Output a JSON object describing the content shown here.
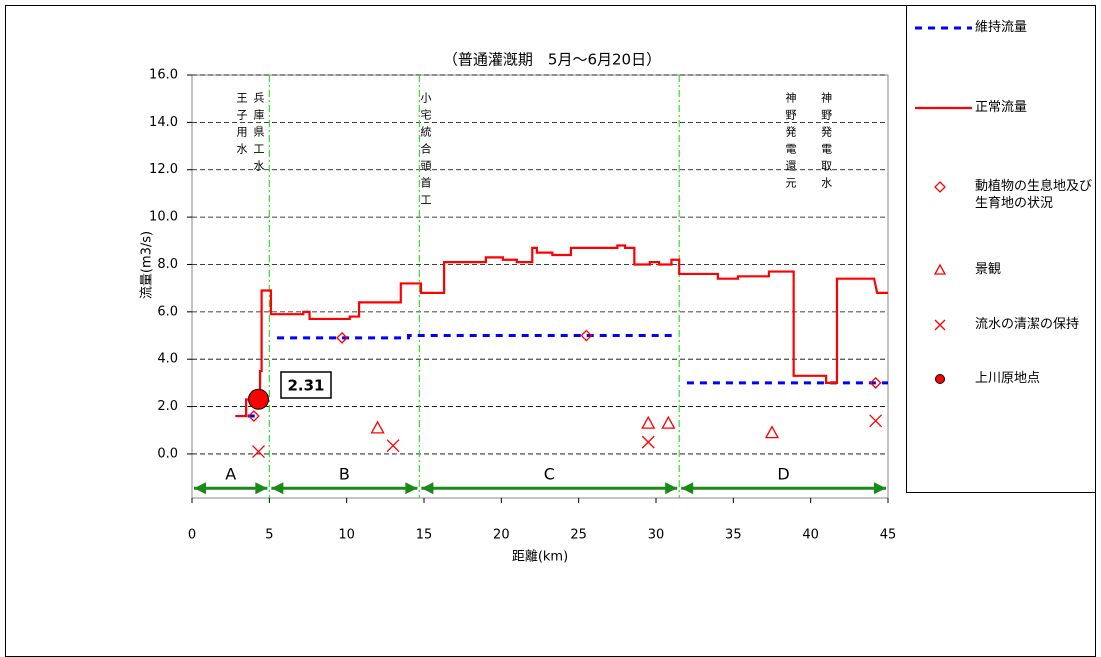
{
  "chart_data": {
    "type": "line",
    "title": "（普通灌漑期　5月～6月20日）",
    "xlabel": "距離(km)",
    "ylabel": "流量(m3/s)",
    "xlim": [
      0,
      45
    ],
    "ylim": [
      -1.86,
      16
    ],
    "xticks": [
      0,
      5,
      10,
      15,
      20,
      25,
      30,
      35,
      40,
      45
    ],
    "yticks": [
      {
        "value": 0,
        "label": "0.0"
      },
      {
        "value": 2,
        "label": "2.0"
      },
      {
        "value": 4,
        "label": "4.0"
      },
      {
        "value": 6,
        "label": "6.0"
      },
      {
        "value": 8,
        "label": "8.0"
      },
      {
        "value": 10,
        "label": "10.0"
      },
      {
        "value": 12,
        "label": "12.0"
      },
      {
        "value": 14,
        "label": "14.0"
      },
      {
        "value": 16,
        "label": "16.0"
      }
    ],
    "grid": true,
    "series": [
      {
        "name": "維持流量",
        "color": "#0000ff",
        "marker": "dash",
        "x": [
          3.6,
          4.4,
          null,
          5.5,
          14.0,
          14.0,
          31.4,
          null,
          32.0,
          45
        ],
        "values": [
          1.6,
          1.6,
          null,
          4.9,
          4.9,
          5.0,
          5.0,
          null,
          3.0,
          3.0
        ]
      },
      {
        "name": "正常流量",
        "color": "#ff0000",
        "marker": "line",
        "x": [
          2.8,
          3.5,
          3.5,
          4.4,
          4.4,
          4.5,
          4.5,
          5.1,
          5.1,
          7.2,
          7.2,
          7.6,
          7.6,
          10.2,
          10.2,
          10.8,
          10.8,
          13.5,
          13.5,
          14.8,
          14.8,
          16.3,
          16.3,
          19.0,
          19.0,
          20.1,
          20.1,
          21.0,
          21.0,
          22.0,
          22.0,
          22.3,
          22.3,
          23.3,
          23.3,
          24.5,
          24.5,
          27.5,
          27.5,
          28.0,
          28.0,
          28.6,
          28.6,
          29.6,
          29.6,
          30.2,
          30.2,
          31.0,
          31.0,
          31.5,
          31.5,
          34.0,
          34.0,
          35.3,
          35.3,
          37.3,
          37.3,
          38.9,
          38.9,
          41.0,
          41.0,
          41.7,
          41.7,
          44.1,
          44.3,
          45
        ],
        "values": [
          1.6,
          1.6,
          2.3,
          2.3,
          3.5,
          3.5,
          6.9,
          6.9,
          5.9,
          5.9,
          6.0,
          6.0,
          5.7,
          5.7,
          5.8,
          5.8,
          6.4,
          6.4,
          7.2,
          7.2,
          6.8,
          6.8,
          8.1,
          8.1,
          8.3,
          8.3,
          8.2,
          8.2,
          8.1,
          8.1,
          8.7,
          8.7,
          8.5,
          8.5,
          8.4,
          8.4,
          8.7,
          8.7,
          8.8,
          8.8,
          8.7,
          8.7,
          8.0,
          8.0,
          8.1,
          8.1,
          8.0,
          8.0,
          8.2,
          8.2,
          7.6,
          7.6,
          7.4,
          7.4,
          7.5,
          7.5,
          7.7,
          7.7,
          3.3,
          3.3,
          3.0,
          3.0,
          7.4,
          7.4,
          6.8,
          6.8
        ]
      },
      {
        "name": "動植物の生息地及び生育地の状況",
        "color": "#ff0000",
        "marker": "diamond",
        "x": [
          4.0,
          9.7,
          25.5,
          44.2
        ],
        "values": [
          1.6,
          4.9,
          5.0,
          3.0
        ]
      },
      {
        "name": "景観",
        "color": "#ff0000",
        "marker": "triangle",
        "x": [
          12.0,
          29.5,
          30.8,
          37.5
        ],
        "values": [
          1.1,
          1.3,
          1.3,
          0.9
        ]
      },
      {
        "name": "流水の清潔の保持",
        "color": "#ff0000",
        "marker": "cross",
        "x": [
          4.3,
          13.0,
          29.5,
          44.2
        ],
        "values": [
          0.1,
          0.35,
          0.5,
          1.4
        ]
      },
      {
        "name": "上川原地点",
        "color": "#ff0000",
        "marker": "circle",
        "x": [
          4.3
        ],
        "values": [
          2.31
        ],
        "value_labels": [
          "2.31"
        ]
      }
    ],
    "annotations": [
      {
        "text": "王子用水",
        "x": 3.2
      },
      {
        "text": "兵庫県工水",
        "x": 4.3
      },
      {
        "text": "小宅統合頭首工",
        "x": 15.1
      },
      {
        "text": "神野発電還元",
        "x": 38.7
      },
      {
        "text": "神野発電取水",
        "x": 41.0
      }
    ],
    "segments": [
      {
        "label": "A",
        "start": 0,
        "end": 5
      },
      {
        "label": "B",
        "start": 5,
        "end": 14.7
      },
      {
        "label": "C",
        "start": 14.7,
        "end": 31.5
      },
      {
        "label": "D",
        "start": 31.5,
        "end": 45
      }
    ]
  }
}
